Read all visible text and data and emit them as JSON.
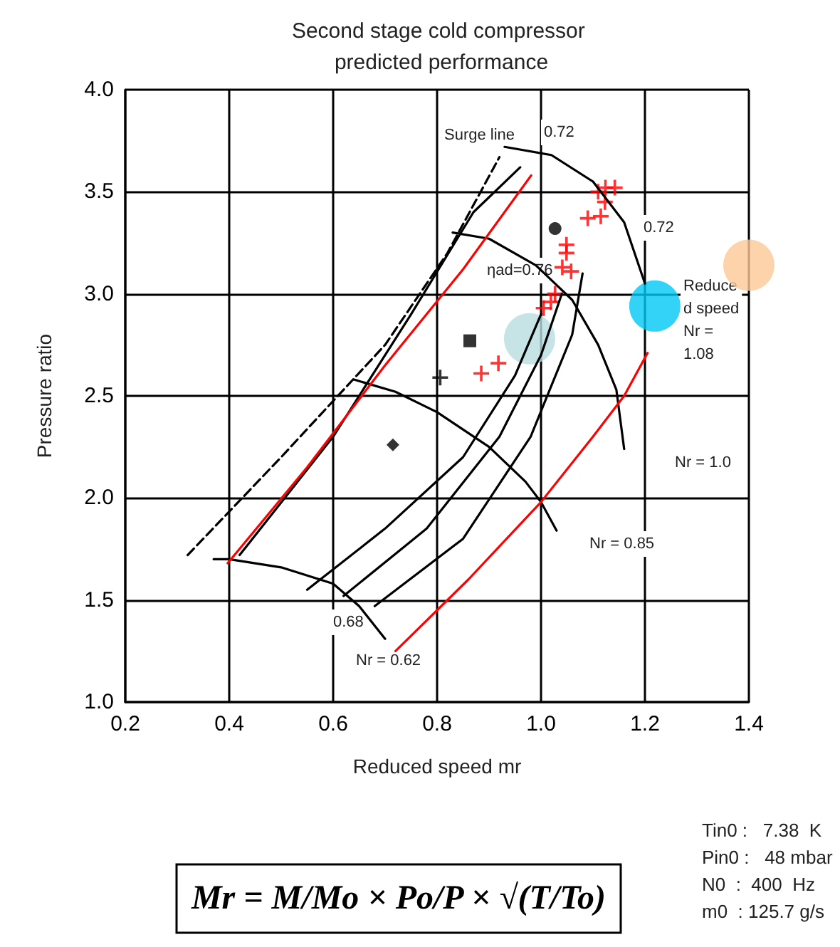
{
  "chart_data": {
    "type": "line",
    "title": "Second stage cold compressor predicted performance",
    "xlabel": "Reduced speed mr",
    "ylabel": "Pressure ratio",
    "xlim": [
      0.2,
      1.4
    ],
    "xticks": [
      0.2,
      0.4,
      0.6,
      0.8,
      {
        "value": 1,
        "label": "1.0"
      },
      1.2,
      1.4
    ],
    "ylim": [
      1.0,
      4.0
    ],
    "yticks": [
      {
        "value": 1,
        "label": "1.0"
      },
      1.5,
      {
        "value": 2,
        "label": "2.0"
      },
      2.5,
      {
        "value": 3,
        "label": "3.0"
      },
      3.5,
      {
        "value": 4,
        "label": "4.0"
      }
    ],
    "grid": true,
    "marker": "none",
    "series": [
      {
        "line_style": "dashed",
        "color": "#000000",
        "x": [
          0.32,
          0.5,
          0.7,
          0.82,
          0.92
        ],
        "values": [
          1.72,
          2.2,
          2.75,
          3.2,
          3.67
        ]
      },
      {
        "color": "#000000",
        "x": [
          0.37,
          0.4,
          0.5,
          0.6,
          0.65,
          0.7
        ],
        "values": [
          1.7,
          1.7,
          1.66,
          1.58,
          1.47,
          1.31
        ]
      },
      {
        "color": "#000000",
        "x": [
          0.64,
          0.72,
          0.8,
          0.9,
          0.97,
          1.0,
          1.03
        ],
        "values": [
          2.58,
          2.52,
          2.42,
          2.25,
          2.08,
          1.98,
          1.84
        ]
      },
      {
        "color": "#000000",
        "x": [
          0.83,
          0.9,
          0.99,
          1.06,
          1.11,
          1.145,
          1.16
        ],
        "values": [
          3.3,
          3.27,
          3.14,
          2.97,
          2.75,
          2.53,
          2.24
        ]
      },
      {
        "color": "#000000",
        "x": [
          0.93,
          1.02,
          1.1,
          1.16,
          1.2
        ],
        "values": [
          3.72,
          3.68,
          3.55,
          3.35,
          3.05
        ]
      },
      {
        "color": "#000000",
        "x": [
          0.42,
          0.6,
          0.75,
          0.87,
          0.96
        ],
        "values": [
          1.72,
          2.3,
          2.9,
          3.4,
          3.62
        ]
      },
      {
        "color": "#000000",
        "x": [
          0.55,
          0.7,
          0.85,
          0.95,
          1.0
        ],
        "values": [
          1.55,
          1.85,
          2.2,
          2.6,
          2.9
        ]
      },
      {
        "color": "#000000",
        "x": [
          0.62,
          0.78,
          0.92,
          1.0,
          1.04
        ],
        "values": [
          1.52,
          1.85,
          2.3,
          2.7,
          3.0
        ]
      },
      {
        "color": "#000000",
        "x": [
          0.68,
          0.85,
          0.98,
          1.06,
          1.08
        ],
        "values": [
          1.47,
          1.8,
          2.3,
          2.8,
          3.1
        ]
      },
      {
        "color": "#ff0000",
        "x": [
          0.397,
          0.55,
          0.7,
          0.85,
          0.981
        ],
        "values": [
          1.68,
          2.15,
          2.65,
          3.12,
          3.58
        ]
      },
      {
        "color": "#ff0000",
        "x": [
          0.72,
          0.86,
          1.0,
          1.1,
          1.16,
          1.205
        ],
        "values": [
          1.25,
          1.6,
          1.98,
          2.3,
          2.5,
          2.71
        ]
      },
      {
        "type": "scatter",
        "marker": "cross",
        "color": "#ff0000",
        "x": [
          1.11,
          1.124,
          1.142,
          1.123,
          1.09,
          1.115,
          1.049,
          1.049,
          1.041,
          1.058,
          1.027,
          1.019,
          1.005,
          0.918,
          0.885
        ],
        "values": [
          3.5,
          3.52,
          3.52,
          3.45,
          3.37,
          3.38,
          3.24,
          3.2,
          3.13,
          3.11,
          3.0,
          2.96,
          2.93,
          2.66,
          2.61
        ]
      },
      {
        "type": "scatter",
        "marker": "circle",
        "color": "#000000",
        "x": [
          1.027
        ],
        "values": [
          3.32
        ]
      },
      {
        "type": "scatter",
        "marker": "square",
        "color": "#000000",
        "x": [
          0.863
        ],
        "values": [
          2.77
        ]
      },
      {
        "type": "scatter",
        "marker": "diamond",
        "color": "#000000",
        "x": [
          0.715
        ],
        "values": [
          2.26
        ]
      },
      {
        "type": "scatter",
        "marker": "cross",
        "color": "#000000",
        "x": [
          0.806
        ],
        "values": [
          2.59
        ]
      },
      {
        "type": "scatter",
        "marker": "circle",
        "color": "#b8dde0",
        "x": [
          0.978
        ],
        "values": [
          2.78
        ]
      },
      {
        "type": "scatter",
        "marker": "circle",
        "color": "#00c8f5",
        "x": [
          1.219
        ],
        "values": [
          2.94
        ]
      },
      {
        "type": "scatter",
        "marker": "circle",
        "color": "#fcc896",
        "x": [
          1.4
        ],
        "values": [
          3.14
        ]
      }
    ],
    "annotations": [
      "Surge line",
      "0.72",
      "0.72",
      "ηad=0.76",
      "Reduce\nd speed\nNr =\n1.08",
      "Nr = 1.0",
      "Nr = 0.85",
      "0.68",
      "Nr = 0.62",
      "Mr = M/Mo × Po/P × √(T/To)",
      "Tin0 :   7.38  K",
      "Pin0 :   48 mbar",
      "N0  :  400  Hz",
      "m0  : 125.7 g/s"
    ]
  }
}
